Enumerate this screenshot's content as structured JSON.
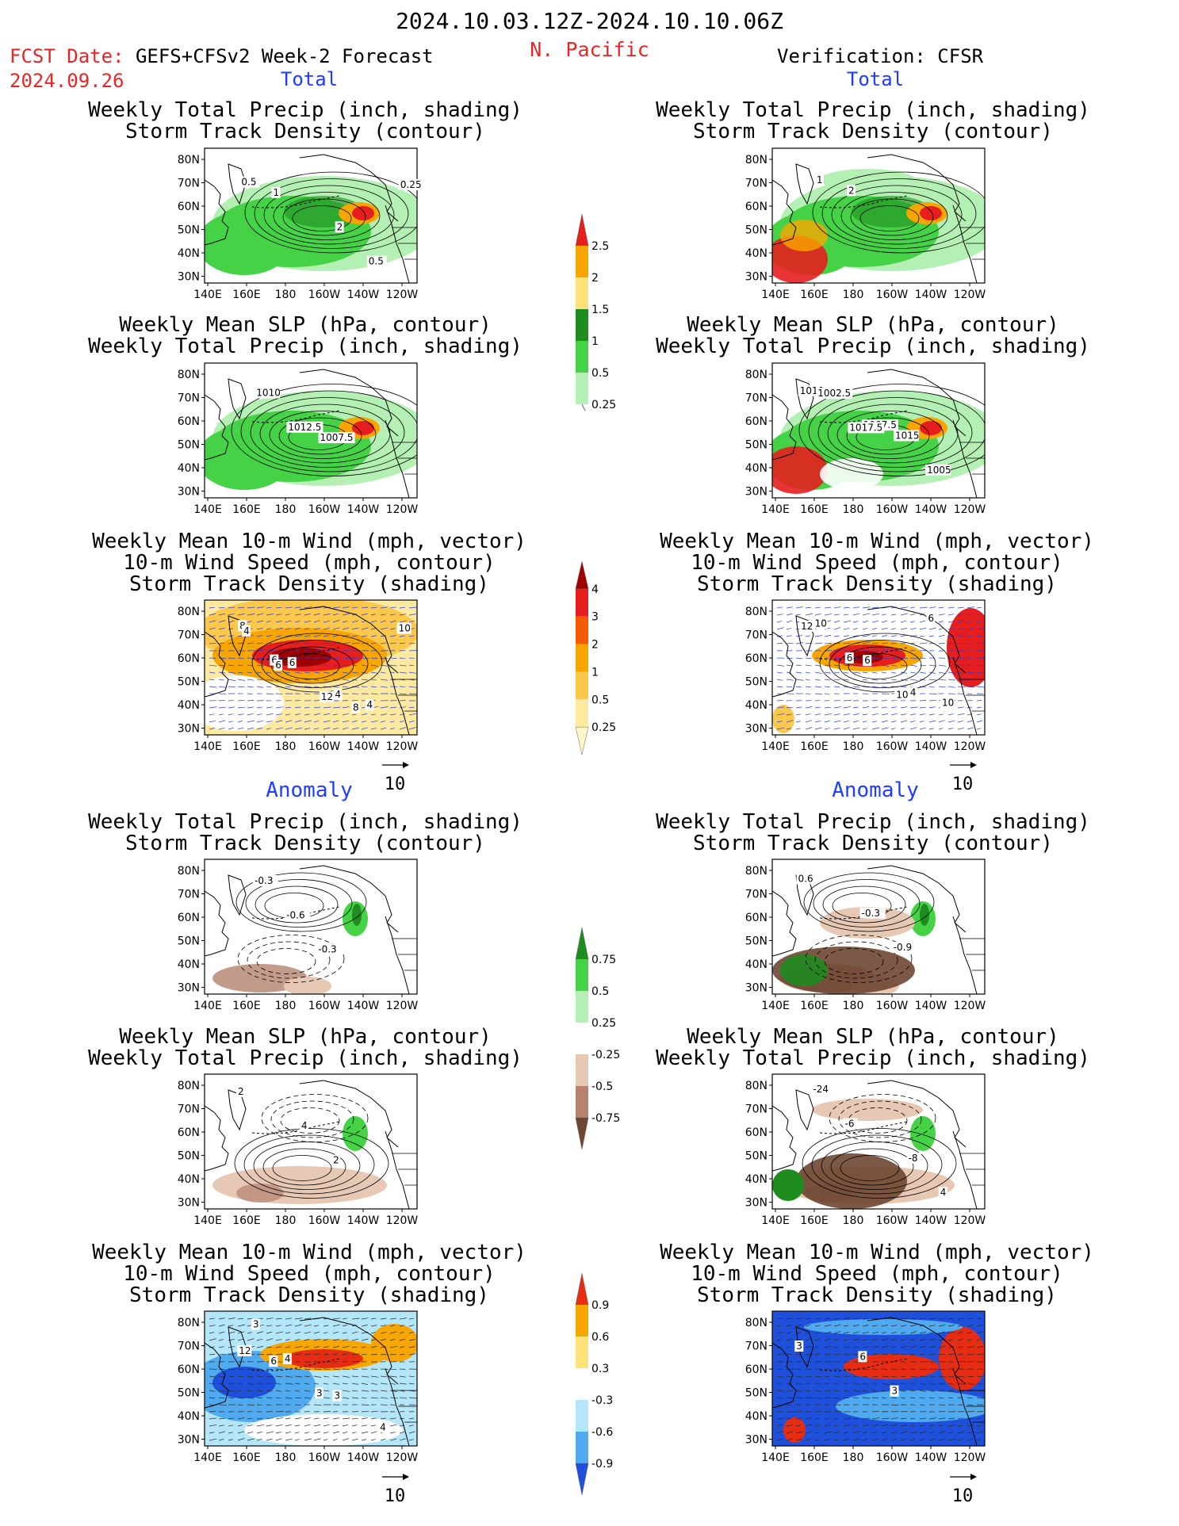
{
  "header": {
    "period": "2024.10.03.12Z-2024.10.10.06Z",
    "region": "N. Pacific",
    "fcst_label": "FCST Date:",
    "fcst_product": "GEFS+CFSv2 Week-2 Forecast",
    "fcst_date": "2024.09.26",
    "verification": "Verification: CFSR"
  },
  "sections": {
    "total": "Total",
    "anomaly": "Anomaly"
  },
  "titles": {
    "precip_storm": [
      "Weekly Total Precip (inch, shading)",
      "Storm Track Density (contour)"
    ],
    "slp_precip": [
      "Weekly Mean SLP (hPa, contour)",
      "Weekly Total Precip (inch, shading)"
    ],
    "wind_storm": [
      "Weekly Mean 10-m Wind (mph, vector)",
      "10-m Wind Speed (mph, contour)",
      "Storm Track Density (shading)"
    ]
  },
  "axes": {
    "lat_ticks": [
      "80N",
      "70N",
      "60N",
      "50N",
      "40N",
      "30N"
    ],
    "lon_ticks": [
      "140E",
      "160E",
      "180",
      "160W",
      "140W",
      "120W"
    ]
  },
  "vector_ref": "10",
  "colorbars": {
    "precip_total": {
      "labels": [
        "2.5",
        "2",
        "1.5",
        "1",
        "0.5",
        "0.25"
      ],
      "colors": [
        "#e61e1e",
        "#f7a600",
        "#fde27a",
        "#1e8c1e",
        "#46d246",
        "#b4f0b4"
      ]
    },
    "storm_total": {
      "labels": [
        "4",
        "3",
        "2",
        "1",
        "0.5",
        "0.25"
      ],
      "colors": [
        "#a00000",
        "#e61e1e",
        "#f55a00",
        "#f7a600",
        "#fbc84b",
        "#fde9a0",
        "#fff7c8"
      ]
    },
    "precip_anom": {
      "labels": [
        "0.75",
        "0.5",
        "0.25",
        "-0.25",
        "-0.5",
        "-0.75"
      ],
      "colors": [
        "#1e8c1e",
        "#46d246",
        "#b4f0b4",
        "#ffffff",
        "#e6c8b4",
        "#b4826e",
        "#6e4632"
      ]
    },
    "storm_anom": {
      "labels": [
        "0.9",
        "0.6",
        "0.3",
        "-0.3",
        "-0.6",
        "-0.9"
      ],
      "colors": [
        "#e62d14",
        "#f7a600",
        "#fde27a",
        "#ffffff",
        "#b4e6fa",
        "#50aaf0",
        "#1e50dc"
      ]
    }
  },
  "panels": [
    {
      "id": "fcst-total-precip",
      "labels": [
        "0.5",
        "1",
        "2",
        "0.5",
        "0.25"
      ],
      "style": "precip-total-fcst"
    },
    {
      "id": "obs-total-precip",
      "labels": [
        "1",
        "2"
      ],
      "style": "precip-total-obs"
    },
    {
      "id": "fcst-total-slp",
      "labels": [
        "1010",
        "1012.5",
        "1007.5"
      ],
      "style": "slp-total-fcst"
    },
    {
      "id": "obs-total-slp",
      "labels": [
        "1010",
        "1007.5",
        "1015",
        "1005",
        "1002.5",
        "1017.5"
      ],
      "style": "slp-total-obs"
    },
    {
      "id": "fcst-total-wind",
      "labels": [
        "8",
        "6",
        "4",
        "4",
        "10",
        "6",
        "12",
        "8",
        "4",
        "6"
      ],
      "style": "wind-total-fcst"
    },
    {
      "id": "obs-total-wind",
      "labels": [
        "10",
        "6",
        "4",
        "10",
        "12",
        "6",
        "10",
        "6"
      ],
      "style": "wind-total-obs"
    },
    {
      "id": "fcst-anom-precip",
      "labels": [
        "-0.3",
        "-0.6",
        "-0.3"
      ],
      "style": "precip-anom-fcst"
    },
    {
      "id": "obs-anom-precip",
      "labels": [
        "0.6",
        "-0.3",
        "-0.9"
      ],
      "style": "precip-anom-obs"
    },
    {
      "id": "fcst-anom-slp",
      "labels": [
        "2",
        "4",
        "2"
      ],
      "style": "slp-anom-fcst"
    },
    {
      "id": "obs-anom-slp",
      "labels": [
        "-24",
        "-6",
        "-8",
        "4"
      ],
      "style": "slp-anom-obs"
    },
    {
      "id": "fcst-anom-wind",
      "labels": [
        "3",
        "4",
        "3",
        "4",
        "12",
        "6",
        "3"
      ],
      "style": "wind-anom-fcst"
    },
    {
      "id": "obs-anom-wind",
      "labels": [
        "3",
        "6",
        "3"
      ],
      "style": "wind-anom-obs"
    }
  ]
}
